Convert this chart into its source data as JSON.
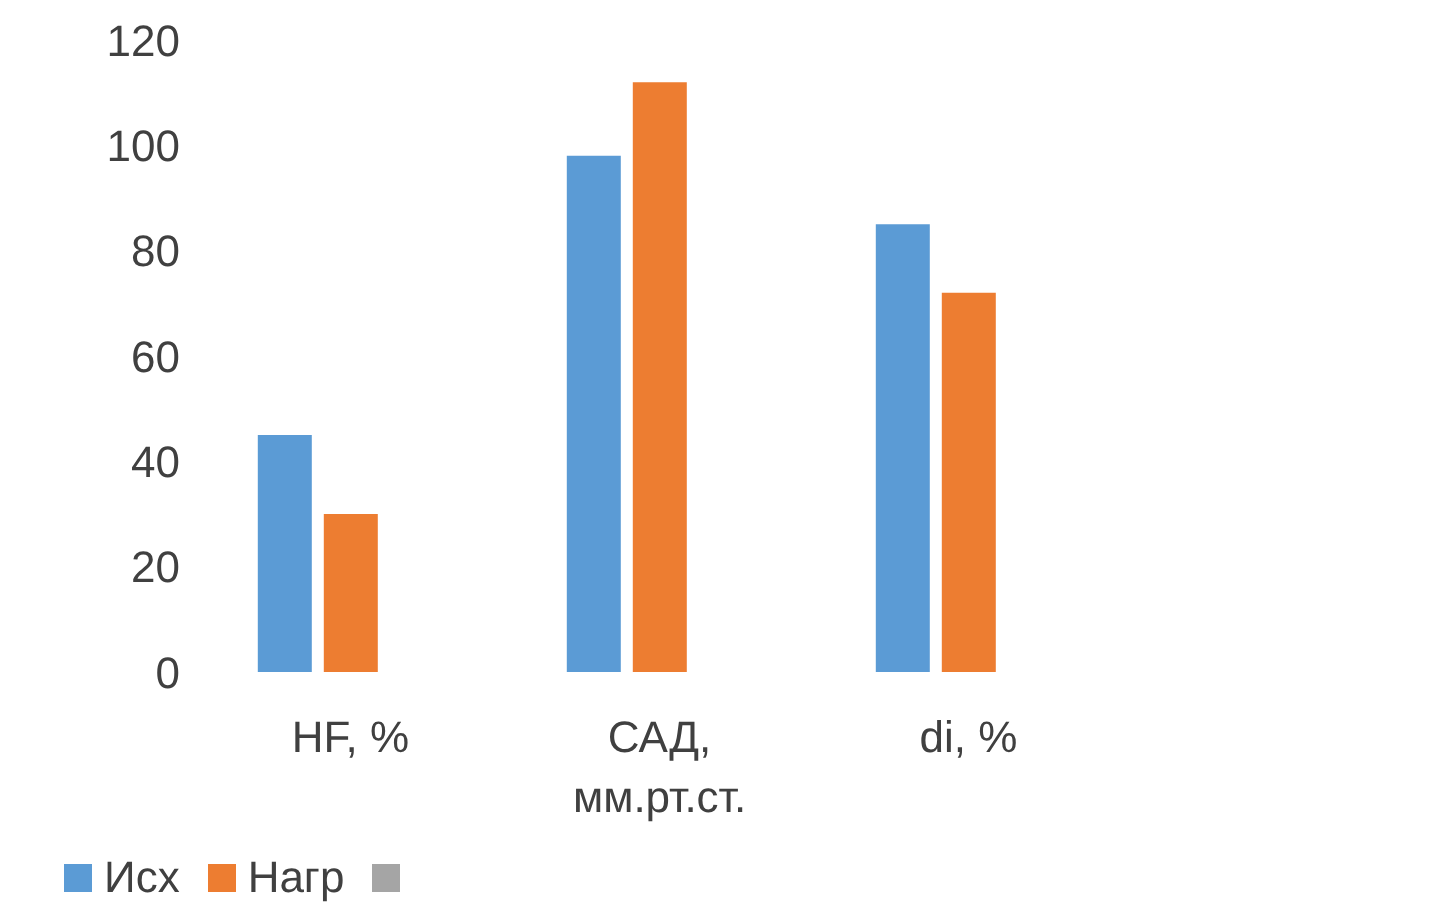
{
  "chart_data": {
    "type": "bar",
    "categories": [
      "HF, %",
      "САД, мм.рт.ст.",
      "di, %",
      null
    ],
    "series": [
      {
        "name": "Исх",
        "color": "#5b9bd5",
        "values": [
          45,
          98,
          85,
          null
        ]
      },
      {
        "name": "Нагр",
        "color": "#ed7d31",
        "values": [
          30,
          112,
          72,
          null
        ]
      },
      {
        "color": "#a5a5a5",
        "values": [
          null,
          null,
          null,
          null
        ]
      }
    ],
    "ylim": [
      0,
      120
    ],
    "yticks": [
      0,
      20,
      40,
      60,
      80,
      100,
      120
    ],
    "grid": false,
    "legend": "bottom left"
  }
}
